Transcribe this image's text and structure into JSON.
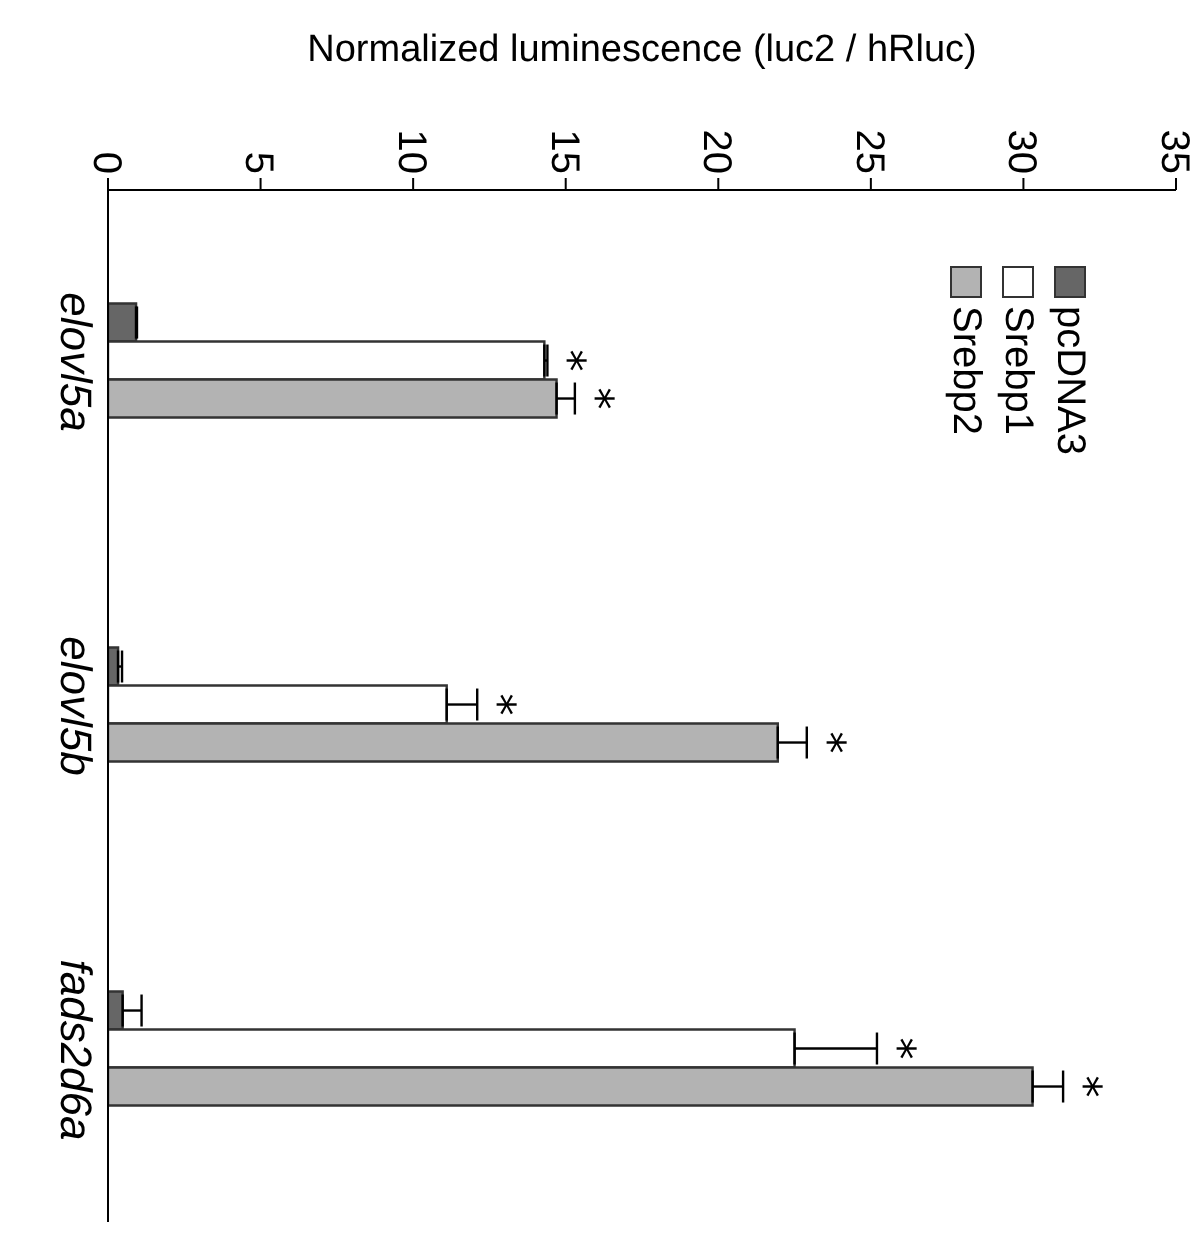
{
  "chart_data": {
    "type": "bar",
    "orientation": "horizontal",
    "xlabel": "Normalized luminescence (luc2 / hRluc)",
    "categories": [
      "elovl5a",
      "elovl5b",
      "fads2d6a"
    ],
    "xlim": [
      0,
      35
    ],
    "xticks": [
      0,
      5,
      10,
      15,
      20,
      25,
      30,
      35
    ],
    "legend": "top right",
    "series": [
      {
        "name": "pcDNA3",
        "color": "#666666",
        "values": [
          0.92,
          0.33,
          0.48
        ],
        "errors": [
          [
            0.92,
            0.95
          ],
          [
            0.33,
            0.46
          ],
          [
            0.48,
            1.1
          ]
        ]
      },
      {
        "name": "Srebp1",
        "color": "#ffffff",
        "values": [
          14.3,
          11.1,
          22.5
        ],
        "errors": [
          [
            14.3,
            14.4
          ],
          [
            11.1,
            12.1
          ],
          [
            22.5,
            25.2
          ]
        ],
        "value_labels": [
          "*",
          "*",
          "*"
        ]
      },
      {
        "name": "Srebp2",
        "color": "#b3b3b3",
        "values": [
          14.7,
          21.95,
          30.3
        ],
        "errors": [
          [
            14.7,
            15.3
          ],
          [
            21.95,
            22.9
          ],
          [
            30.3,
            31.3
          ]
        ],
        "value_labels": [
          "*",
          "*",
          "*"
        ]
      }
    ]
  }
}
